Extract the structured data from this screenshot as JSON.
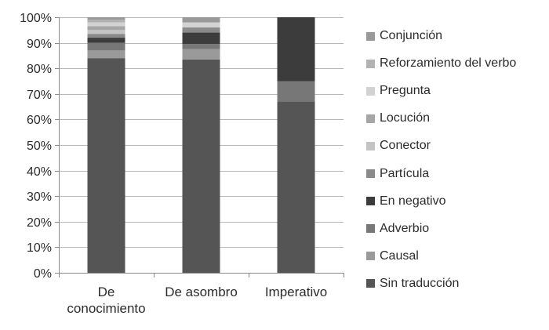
{
  "chart_data": {
    "type": "bar",
    "stacked": true,
    "percent_stacked": true,
    "title": "",
    "xlabel": "",
    "ylabel": "",
    "ylim": [
      0,
      100
    ],
    "y_ticks": [
      "0%",
      "10%",
      "20%",
      "30%",
      "40%",
      "50%",
      "60%",
      "70%",
      "80%",
      "90%",
      "100%"
    ],
    "grid": true,
    "legend_position": "right",
    "categories": [
      "De conocimiento",
      "De asombro",
      "Imperativo"
    ],
    "category_label_lines": [
      [
        "De",
        "conocimiento"
      ],
      [
        "De asombro"
      ],
      [
        "Imperativo"
      ]
    ],
    "series": [
      {
        "name": "Sin traducción",
        "color": "#555555",
        "values": [
          84,
          83.5,
          67
        ]
      },
      {
        "name": "Causal",
        "color": "#9a9a9a",
        "values": [
          3,
          4,
          0
        ]
      },
      {
        "name": "Adverbio",
        "color": "#777777",
        "values": [
          3,
          2,
          8
        ]
      },
      {
        "name": "En negativo",
        "color": "#3c3c3c",
        "values": [
          2,
          4.5,
          25
        ]
      },
      {
        "name": "Partícula",
        "color": "#8a8a8a",
        "values": [
          1.5,
          2,
          0
        ]
      },
      {
        "name": "Conector",
        "color": "#c4c4c4",
        "values": [
          1.5,
          0,
          0
        ]
      },
      {
        "name": "Locución",
        "color": "#a6a6a6",
        "values": [
          1.5,
          0,
          0
        ]
      },
      {
        "name": "Pregunta",
        "color": "#d2d2d2",
        "values": [
          1.5,
          2,
          0
        ]
      },
      {
        "name": "Reforzamiento del verbo",
        "color": "#b2b2b2",
        "values": [
          1,
          0,
          0
        ]
      },
      {
        "name": "Conjunción",
        "color": "#999999",
        "values": [
          1,
          2,
          0
        ]
      }
    ]
  }
}
